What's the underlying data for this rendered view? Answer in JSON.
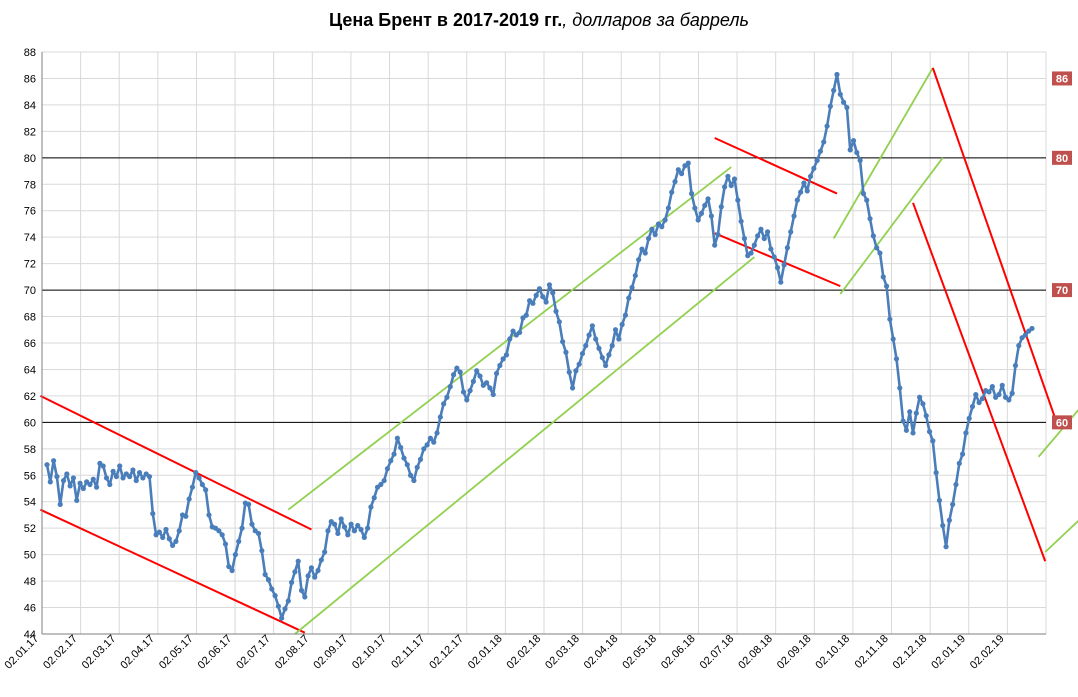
{
  "title": {
    "bold": "Цена Брент в 2017-2019 гг.",
    "italic": ", долларов за баррель"
  },
  "colors": {
    "series": "#4a7ebb",
    "grid": "#d9d9d9",
    "level_line": "#000000",
    "trend_down": "#ff0000",
    "trend_up": "#92d050",
    "level_badge": "#c0504d"
  },
  "chart_data": {
    "type": "line",
    "title": "Цена Брент в 2017-2019 гг., долларов за баррель",
    "xlabel": "",
    "ylabel": "",
    "ylim": [
      44,
      88
    ],
    "y_ticks": [
      44,
      46,
      48,
      50,
      52,
      54,
      56,
      58,
      60,
      62,
      64,
      66,
      68,
      70,
      72,
      74,
      76,
      78,
      80,
      82,
      84,
      86,
      88
    ],
    "x_tick_labels": [
      "02.01.17",
      "02.02.17",
      "02.03.17",
      "02.04.17",
      "02.05.17",
      "02.06.17",
      "02.07.17",
      "02.08.17",
      "02.09.17",
      "02.10.17",
      "02.11.17",
      "02.12.17",
      "02.01.18",
      "02.02.18",
      "02.03.18",
      "02.04.18",
      "02.05.18",
      "02.06.18",
      "02.07.18",
      "02.08.18",
      "02.09.18",
      "02.10.18",
      "02.11.18",
      "02.12.18",
      "02.01.19",
      "02.02.19"
    ],
    "grid": true,
    "levels": [
      86,
      80,
      70,
      60
    ],
    "series": [
      {
        "values": [
          56.8,
          55.5,
          57.1,
          55.9,
          53.8,
          55.6,
          56.1,
          55.2,
          55.8,
          54.1,
          55.4,
          55.0,
          55.5,
          55.3,
          55.7,
          55.1,
          56.9,
          56.7,
          55.8,
          55.3,
          56.3,
          55.9,
          56.7,
          55.8,
          56.1,
          55.9,
          56.4,
          55.6,
          56.2,
          55.8,
          56.1,
          55.9,
          53.1,
          51.5,
          51.7,
          51.3,
          51.9,
          51.2,
          50.7,
          51.0,
          51.8,
          53.0,
          52.9,
          54.2,
          55.1,
          56.2,
          55.8,
          55.3,
          54.9,
          53.0,
          52.1,
          52.0,
          51.8,
          51.5,
          50.8,
          49.1,
          48.8,
          50.0,
          51.0,
          52.0,
          53.9,
          53.8,
          52.3,
          51.8,
          51.6,
          50.3,
          48.5,
          48.1,
          47.4,
          46.9,
          46.1,
          45.2,
          45.9,
          46.5,
          47.9,
          48.7,
          49.5,
          47.3,
          46.8,
          48.4,
          49.0,
          48.3,
          48.8,
          49.6,
          50.2,
          51.8,
          52.5,
          52.3,
          51.6,
          52.7,
          52.1,
          51.5,
          52.3,
          51.8,
          52.2,
          51.9,
          51.3,
          52.0,
          53.6,
          54.3,
          55.1,
          55.3,
          55.6,
          56.5,
          57.1,
          57.6,
          58.8,
          58.1,
          57.3,
          56.8,
          56.0,
          55.6,
          56.6,
          57.2,
          58.0,
          58.3,
          58.8,
          58.5,
          59.2,
          60.4,
          61.4,
          61.9,
          62.7,
          63.6,
          64.1,
          63.8,
          62.3,
          61.7,
          62.4,
          63.1,
          63.9,
          63.5,
          62.8,
          63.0,
          62.6,
          62.1,
          63.7,
          64.3,
          64.8,
          65.1,
          66.3,
          66.9,
          66.6,
          66.8,
          67.9,
          68.1,
          69.2,
          69.0,
          69.6,
          70.1,
          69.5,
          69.1,
          70.4,
          69.8,
          68.4,
          67.6,
          66.1,
          65.3,
          63.8,
          62.6,
          63.9,
          64.4,
          65.2,
          65.8,
          66.6,
          67.3,
          66.3,
          65.6,
          64.9,
          64.3,
          65.1,
          65.8,
          67.0,
          66.3,
          67.4,
          68.1,
          69.4,
          70.2,
          71.1,
          72.3,
          73.1,
          72.8,
          73.9,
          74.6,
          74.2,
          75.0,
          74.8,
          75.3,
          76.2,
          77.4,
          78.2,
          79.1,
          78.8,
          79.4,
          79.6,
          77.3,
          76.2,
          75.3,
          75.8,
          76.4,
          76.9,
          75.6,
          73.4,
          74.2,
          76.3,
          77.8,
          78.6,
          77.9,
          78.4,
          76.8,
          75.2,
          73.9,
          72.6,
          72.8,
          73.4,
          74.1,
          74.6,
          73.9,
          74.4,
          73.1,
          72.5,
          71.7,
          70.6,
          71.9,
          73.2,
          74.4,
          75.6,
          76.8,
          77.4,
          78.1,
          77.5,
          78.6,
          79.2,
          79.8,
          80.5,
          81.2,
          82.4,
          83.9,
          85.1,
          86.3,
          84.8,
          84.2,
          83.8,
          80.6,
          81.3,
          80.4,
          79.8,
          77.3,
          76.8,
          75.4,
          74.1,
          73.2,
          72.8,
          71.0,
          70.3,
          67.8,
          66.3,
          64.8,
          62.6,
          60.1,
          59.4,
          60.8,
          59.2,
          60.7,
          61.9,
          61.4,
          60.5,
          59.3,
          58.6,
          56.2,
          54.1,
          52.2,
          50.6,
          52.6,
          53.8,
          55.3,
          56.9,
          57.6,
          59.2,
          60.3,
          61.2,
          62.1,
          61.5,
          61.8,
          62.4,
          62.3,
          62.7,
          61.9,
          62.1,
          62.8,
          61.9,
          61.7,
          62.2,
          64.3,
          65.8,
          66.4,
          66.6,
          66.9,
          67.1
        ]
      }
    ]
  }
}
